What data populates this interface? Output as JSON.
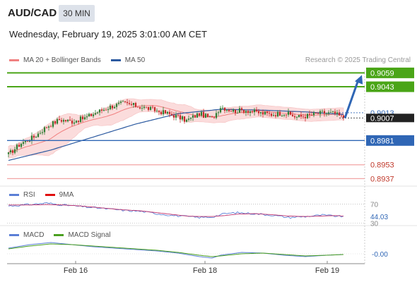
{
  "header": {
    "symbol": "AUD/CAD",
    "timeframe": "30 MIN",
    "datetime": "Wednesday, February 19, 2025 3:01:00 AM CET"
  },
  "legend": {
    "price": [
      {
        "label": "MA 20 + Bollinger Bands",
        "color": "#f08080"
      },
      {
        "label": "MA 50",
        "color": "#2c5aa0"
      }
    ],
    "rsi": [
      {
        "label": "RSI",
        "color": "#5b7fd6"
      },
      {
        "label": "9MA",
        "color": "#e01010"
      }
    ],
    "macd": [
      {
        "label": "MACD",
        "color": "#5b7fd6"
      },
      {
        "label": "MACD Signal",
        "color": "#4aa020"
      }
    ]
  },
  "credit": "Research © 2025 Trading Central",
  "colors": {
    "resistance": "#4aa517",
    "pivot": "#2f66b5",
    "support": "#f2a5a5",
    "candle_up": "#2e7d32",
    "candle_down": "#c62828",
    "bands_fill": "#fbd6d6",
    "arrow": "#2f66b5"
  },
  "chart_data": [
    {
      "type": "candlestick",
      "panel": "price",
      "ylim": [
        0.893,
        0.9065
      ],
      "x_tick_labels": [
        "Feb 16",
        "Feb 18",
        "Feb 19"
      ],
      "levels": [
        {
          "label": "0.9059",
          "value": 0.9059,
          "kind": "resistance"
        },
        {
          "label": "0.9043",
          "value": 0.9043,
          "kind": "resistance"
        },
        {
          "label": "0.8981",
          "value": 0.8981,
          "kind": "pivot"
        },
        {
          "label": "0.8953",
          "value": 0.8953,
          "kind": "support"
        },
        {
          "label": "0.8937",
          "value": 0.8937,
          "kind": "support"
        }
      ],
      "price_labels": [
        {
          "label": "0.9013",
          "value": 0.9013
        },
        {
          "label": "0.9007",
          "value": 0.9007,
          "current": true
        }
      ],
      "close_anchors": [
        [
          0,
          0.8965
        ],
        [
          6,
          0.8978
        ],
        [
          12,
          0.8985
        ],
        [
          18,
          0.8997
        ],
        [
          24,
          0.9005
        ],
        [
          30,
          0.9003
        ],
        [
          36,
          0.9007
        ],
        [
          42,
          0.9014
        ],
        [
          48,
          0.902
        ],
        [
          54,
          0.9024
        ],
        [
          60,
          0.9021
        ],
        [
          66,
          0.9018
        ],
        [
          72,
          0.9014
        ],
        [
          78,
          0.901
        ],
        [
          84,
          0.9004
        ],
        [
          90,
          0.9012
        ],
        [
          96,
          0.9006
        ],
        [
          100,
          0.902
        ],
        [
          106,
          0.9015
        ],
        [
          112,
          0.9016
        ],
        [
          118,
          0.9013
        ],
        [
          124,
          0.9011
        ],
        [
          130,
          0.9013
        ],
        [
          136,
          0.9008
        ],
        [
          142,
          0.901
        ],
        [
          148,
          0.9013
        ],
        [
          154,
          0.9012
        ],
        [
          158,
          0.9007
        ]
      ],
      "ma50_anchors": [
        [
          0,
          0.8958
        ],
        [
          20,
          0.897
        ],
        [
          40,
          0.8985
        ],
        [
          60,
          0.9
        ],
        [
          80,
          0.9012
        ],
        [
          100,
          0.9017
        ],
        [
          120,
          0.9016
        ],
        [
          140,
          0.9014
        ],
        [
          158,
          0.9011
        ]
      ],
      "forecast": {
        "from": [
          158,
          0.9007
        ],
        "to": [
          176,
          0.9059
        ]
      }
    },
    {
      "type": "line",
      "panel": "rsi",
      "ylim": [
        28,
        78
      ],
      "levels": [
        {
          "label": "70",
          "value": 70
        },
        {
          "label": "30",
          "value": 30
        }
      ],
      "last_value_label": "44.03",
      "series": [
        {
          "name": "RSI",
          "anchors": [
            [
              0,
              66
            ],
            [
              10,
              69
            ],
            [
              18,
              72
            ],
            [
              26,
              68
            ],
            [
              34,
              65
            ],
            [
              44,
              61
            ],
            [
              54,
              57
            ],
            [
              62,
              55
            ],
            [
              70,
              50
            ],
            [
              78,
              46
            ],
            [
              84,
              44
            ],
            [
              90,
              42
            ],
            [
              96,
              43
            ],
            [
              102,
              50
            ],
            [
              108,
              52
            ],
            [
              116,
              50
            ],
            [
              124,
              47
            ],
            [
              132,
              42
            ],
            [
              140,
              44
            ],
            [
              148,
              47
            ],
            [
              154,
              45
            ],
            [
              158,
              44
            ]
          ]
        },
        {
          "name": "9MA",
          "anchors": [
            [
              0,
              68
            ],
            [
              10,
              68
            ],
            [
              18,
              69
            ],
            [
              26,
              68
            ],
            [
              34,
              66
            ],
            [
              44,
              62
            ],
            [
              54,
              58
            ],
            [
              62,
              56
            ],
            [
              70,
              52
            ],
            [
              78,
              48
            ],
            [
              84,
              45
            ],
            [
              90,
              44
            ],
            [
              96,
              44
            ],
            [
              102,
              46
            ],
            [
              108,
              49
            ],
            [
              116,
              50
            ],
            [
              124,
              48
            ],
            [
              132,
              45
            ],
            [
              140,
              44
            ],
            [
              148,
              45
            ],
            [
              154,
              46
            ],
            [
              158,
              45
            ]
          ]
        }
      ]
    },
    {
      "type": "line",
      "panel": "macd",
      "ylim": [
        -0.0012,
        0.002
      ],
      "last_value_label": "-0.00",
      "series": [
        {
          "name": "MACD",
          "anchors": [
            [
              0,
              0.0008
            ],
            [
              10,
              0.0013
            ],
            [
              20,
              0.0016
            ],
            [
              30,
              0.0013
            ],
            [
              40,
              0.001
            ],
            [
              50,
              0.0008
            ],
            [
              60,
              0.0006
            ],
            [
              70,
              0.0004
            ],
            [
              80,
              0.0001
            ],
            [
              90,
              -0.0004
            ],
            [
              96,
              -0.0006
            ],
            [
              100,
              -0.0002
            ],
            [
              110,
              0.0002
            ],
            [
              120,
              0.0001
            ],
            [
              130,
              -0.0002
            ],
            [
              140,
              -0.0004
            ],
            [
              150,
              -0.0002
            ],
            [
              158,
              -0.0001
            ]
          ]
        },
        {
          "name": "MACD Signal",
          "anchors": [
            [
              0,
              0.0007
            ],
            [
              10,
              0.0011
            ],
            [
              20,
              0.0014
            ],
            [
              30,
              0.0013
            ],
            [
              40,
              0.0011
            ],
            [
              50,
              0.0009
            ],
            [
              60,
              0.0007
            ],
            [
              70,
              0.0005
            ],
            [
              80,
              0.0002
            ],
            [
              90,
              -0.0002
            ],
            [
              96,
              -0.0004
            ],
            [
              100,
              -0.0003
            ],
            [
              110,
              0.0
            ],
            [
              120,
              0.0001
            ],
            [
              130,
              -0.0001
            ],
            [
              140,
              -0.0003
            ],
            [
              150,
              -0.0002
            ],
            [
              158,
              -0.0001
            ]
          ]
        }
      ]
    }
  ]
}
